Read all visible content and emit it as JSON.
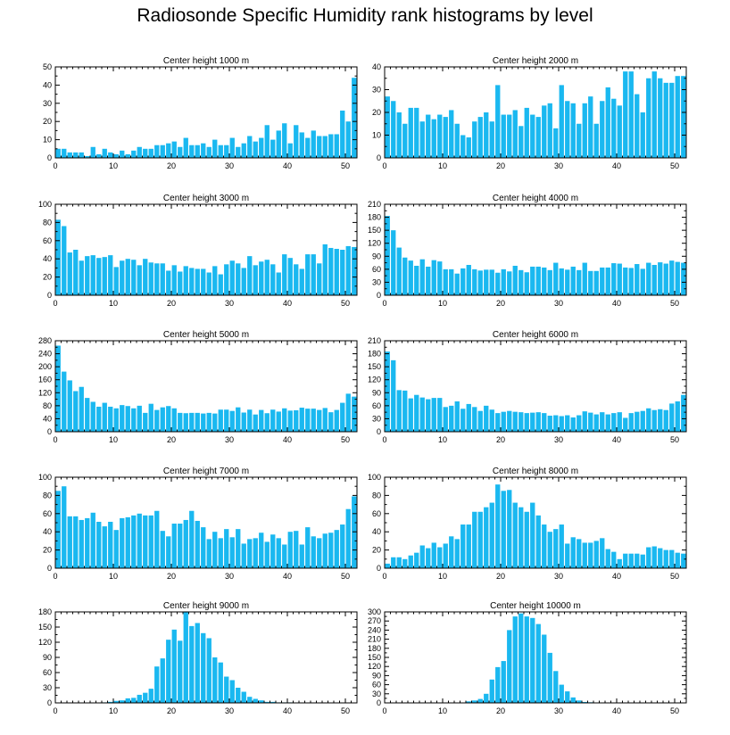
{
  "title": "Radiosonde Specific Humidity rank histograms by level",
  "colors": {
    "bar": "#1ab8f0",
    "axis": "#000000"
  },
  "chart_data": [
    {
      "type": "bar",
      "title": "Center height 1000 m",
      "xlim": [
        0,
        52
      ],
      "ylim": [
        0,
        50
      ],
      "xticks": [
        0,
        10,
        20,
        30,
        40,
        50
      ],
      "yticks": [
        0,
        10,
        20,
        30,
        40,
        50
      ],
      "x": [
        0,
        1,
        2,
        3,
        4,
        5,
        6,
        7,
        8,
        9,
        10,
        11,
        12,
        13,
        14,
        15,
        16,
        17,
        18,
        19,
        20,
        21,
        22,
        23,
        24,
        25,
        26,
        27,
        28,
        29,
        30,
        31,
        32,
        33,
        34,
        35,
        36,
        37,
        38,
        39,
        40,
        41,
        42,
        43,
        44,
        45,
        46,
        47,
        48,
        49,
        50,
        51
      ],
      "values": [
        5,
        5,
        3,
        3,
        3,
        1,
        6,
        2,
        5,
        3,
        2,
        4,
        2,
        4,
        6,
        5,
        5,
        7,
        7,
        8,
        9,
        6,
        11,
        7,
        7,
        8,
        6,
        10,
        7,
        7,
        11,
        6,
        8,
        12,
        9,
        11,
        18,
        10,
        15,
        19,
        8,
        18,
        14,
        11,
        15,
        12,
        12,
        13,
        13,
        26,
        20,
        44
      ]
    },
    {
      "type": "bar",
      "title": "Center height 2000 m",
      "xlim": [
        0,
        52
      ],
      "ylim": [
        0,
        40
      ],
      "xticks": [
        0,
        10,
        20,
        30,
        40,
        50
      ],
      "yticks": [
        0,
        10,
        20,
        30,
        40
      ],
      "x": [
        0,
        1,
        2,
        3,
        4,
        5,
        6,
        7,
        8,
        9,
        10,
        11,
        12,
        13,
        14,
        15,
        16,
        17,
        18,
        19,
        20,
        21,
        22,
        23,
        24,
        25,
        26,
        27,
        28,
        29,
        30,
        31,
        32,
        33,
        34,
        35,
        36,
        37,
        38,
        39,
        40,
        41,
        42,
        43,
        44,
        45,
        46,
        47,
        48,
        49,
        50,
        51
      ],
      "values": [
        27,
        25,
        20,
        15,
        22,
        22,
        16,
        19,
        17,
        19,
        18,
        21,
        15,
        10,
        9,
        16,
        18,
        20,
        16,
        32,
        19,
        19,
        21,
        14,
        22,
        19,
        18,
        23,
        24,
        13,
        32,
        25,
        24,
        15,
        24,
        27,
        15,
        25,
        31,
        26,
        23,
        38,
        38,
        28,
        20,
        35,
        38,
        35,
        33,
        33,
        36,
        36
      ]
    },
    {
      "type": "bar",
      "title": "Center height 3000 m",
      "xlim": [
        0,
        52
      ],
      "ylim": [
        0,
        100
      ],
      "xticks": [
        0,
        10,
        20,
        30,
        40,
        50
      ],
      "yticks": [
        0,
        20,
        40,
        60,
        80,
        100
      ],
      "x": [
        0,
        1,
        2,
        3,
        4,
        5,
        6,
        7,
        8,
        9,
        10,
        11,
        12,
        13,
        14,
        15,
        16,
        17,
        18,
        19,
        20,
        21,
        22,
        23,
        24,
        25,
        26,
        27,
        28,
        29,
        30,
        31,
        32,
        33,
        34,
        35,
        36,
        37,
        38,
        39,
        40,
        41,
        42,
        43,
        44,
        45,
        46,
        47,
        48,
        49,
        50,
        51
      ],
      "values": [
        83,
        76,
        47,
        50,
        38,
        43,
        44,
        41,
        42,
        44,
        31,
        38,
        40,
        39,
        33,
        40,
        36,
        35,
        35,
        27,
        33,
        26,
        32,
        30,
        29,
        29,
        25,
        32,
        23,
        34,
        38,
        35,
        30,
        43,
        33,
        37,
        39,
        34,
        25,
        45,
        41,
        34,
        29,
        45,
        45,
        35,
        56,
        52,
        51,
        50,
        54,
        53
      ]
    },
    {
      "type": "bar",
      "title": "Center height 4000 m",
      "xlim": [
        0,
        52
      ],
      "ylim": [
        0,
        210
      ],
      "xticks": [
        0,
        10,
        20,
        30,
        40,
        50
      ],
      "yticks": [
        0,
        30,
        60,
        90,
        120,
        150,
        180,
        210
      ],
      "x": [
        0,
        1,
        2,
        3,
        4,
        5,
        6,
        7,
        8,
        9,
        10,
        11,
        12,
        13,
        14,
        15,
        16,
        17,
        18,
        19,
        20,
        21,
        22,
        23,
        24,
        25,
        26,
        27,
        28,
        29,
        30,
        31,
        32,
        33,
        34,
        35,
        36,
        37,
        38,
        39,
        40,
        41,
        42,
        43,
        44,
        45,
        46,
        47,
        48,
        49,
        50,
        51
      ],
      "values": [
        183,
        150,
        110,
        87,
        80,
        68,
        83,
        66,
        81,
        78,
        60,
        60,
        50,
        62,
        70,
        60,
        57,
        59,
        59,
        52,
        60,
        55,
        68,
        58,
        53,
        66,
        66,
        64,
        58,
        75,
        62,
        59,
        66,
        58,
        75,
        56,
        56,
        64,
        64,
        74,
        73,
        64,
        63,
        72,
        61,
        75,
        70,
        76,
        73,
        80,
        77,
        75
      ]
    },
    {
      "type": "bar",
      "title": "Center height 5000 m",
      "xlim": [
        0,
        52
      ],
      "ylim": [
        0,
        280
      ],
      "xticks": [
        0,
        10,
        20,
        30,
        40,
        50
      ],
      "yticks": [
        0,
        40,
        80,
        120,
        160,
        200,
        240,
        280
      ],
      "x": [
        0,
        1,
        2,
        3,
        4,
        5,
        6,
        7,
        8,
        9,
        10,
        11,
        12,
        13,
        14,
        15,
        16,
        17,
        18,
        19,
        20,
        21,
        22,
        23,
        24,
        25,
        26,
        27,
        28,
        29,
        30,
        31,
        32,
        33,
        34,
        35,
        36,
        37,
        38,
        39,
        40,
        41,
        42,
        43,
        44,
        45,
        46,
        47,
        48,
        49,
        50,
        51
      ],
      "values": [
        265,
        185,
        158,
        125,
        138,
        104,
        92,
        77,
        89,
        77,
        72,
        82,
        79,
        72,
        80,
        58,
        86,
        67,
        75,
        79,
        72,
        58,
        57,
        58,
        58,
        56,
        58,
        56,
        68,
        68,
        64,
        75,
        59,
        68,
        53,
        67,
        57,
        68,
        62,
        72,
        65,
        66,
        74,
        71,
        71,
        67,
        73,
        60,
        67,
        89,
        117,
        108
      ]
    },
    {
      "type": "bar",
      "title": "Center height 6000 m",
      "xlim": [
        0,
        52
      ],
      "ylim": [
        0,
        210
      ],
      "xticks": [
        0,
        10,
        20,
        30,
        40,
        50
      ],
      "yticks": [
        0,
        30,
        60,
        90,
        120,
        150,
        180,
        210
      ],
      "x": [
        0,
        1,
        2,
        3,
        4,
        5,
        6,
        7,
        8,
        9,
        10,
        11,
        12,
        13,
        14,
        15,
        16,
        17,
        18,
        19,
        20,
        21,
        22,
        23,
        24,
        25,
        26,
        27,
        28,
        29,
        30,
        31,
        32,
        33,
        34,
        35,
        36,
        37,
        38,
        39,
        40,
        41,
        42,
        43,
        44,
        45,
        46,
        47,
        48,
        49,
        50,
        51
      ],
      "values": [
        185,
        165,
        96,
        95,
        77,
        85,
        79,
        75,
        78,
        78,
        57,
        60,
        70,
        53,
        64,
        57,
        48,
        60,
        51,
        43,
        46,
        48,
        46,
        45,
        43,
        44,
        45,
        43,
        37,
        38,
        36,
        38,
        33,
        38,
        47,
        44,
        40,
        45,
        40,
        43,
        45,
        32,
        43,
        46,
        48,
        54,
        50,
        52,
        50,
        65,
        70,
        85
      ]
    },
    {
      "type": "bar",
      "title": "Center height 7000 m",
      "xlim": [
        0,
        52
      ],
      "ylim": [
        0,
        100
      ],
      "xticks": [
        0,
        10,
        20,
        30,
        40,
        50
      ],
      "yticks": [
        0,
        20,
        40,
        60,
        80,
        100
      ],
      "x": [
        0,
        1,
        2,
        3,
        4,
        5,
        6,
        7,
        8,
        9,
        10,
        11,
        12,
        13,
        14,
        15,
        16,
        17,
        18,
        19,
        20,
        21,
        22,
        23,
        24,
        25,
        26,
        27,
        28,
        29,
        30,
        31,
        32,
        33,
        34,
        35,
        36,
        37,
        38,
        39,
        40,
        41,
        42,
        43,
        44,
        45,
        46,
        47,
        48,
        49,
        50,
        51
      ],
      "values": [
        85,
        90,
        57,
        57,
        53,
        55,
        61,
        51,
        46,
        51,
        42,
        55,
        56,
        58,
        60,
        58,
        58,
        63,
        41,
        35,
        49,
        49,
        53,
        63,
        52,
        45,
        32,
        40,
        33,
        43,
        34,
        43,
        27,
        32,
        33,
        39,
        29,
        37,
        33,
        26,
        40,
        41,
        26,
        45,
        35,
        33,
        38,
        39,
        42,
        48,
        65,
        79
      ]
    },
    {
      "type": "bar",
      "title": "Center height 8000 m",
      "xlim": [
        0,
        52
      ],
      "ylim": [
        0,
        100
      ],
      "xticks": [
        0,
        10,
        20,
        30,
        40,
        50
      ],
      "yticks": [
        0,
        20,
        40,
        60,
        80,
        100
      ],
      "x": [
        0,
        1,
        2,
        3,
        4,
        5,
        6,
        7,
        8,
        9,
        10,
        11,
        12,
        13,
        14,
        15,
        16,
        17,
        18,
        19,
        20,
        21,
        22,
        23,
        24,
        25,
        26,
        27,
        28,
        29,
        30,
        31,
        32,
        33,
        34,
        35,
        36,
        37,
        38,
        39,
        40,
        41,
        42,
        43,
        44,
        45,
        46,
        47,
        48,
        49,
        50,
        51
      ],
      "values": [
        5,
        12,
        12,
        10,
        14,
        17,
        25,
        22,
        28,
        23,
        27,
        35,
        32,
        48,
        48,
        62,
        62,
        67,
        72,
        92,
        85,
        86,
        72,
        67,
        62,
        72,
        58,
        48,
        40,
        43,
        48,
        27,
        34,
        32,
        28,
        28,
        30,
        33,
        21,
        18,
        10,
        16,
        16,
        16,
        15,
        23,
        24,
        22,
        20,
        20,
        17,
        16
      ]
    },
    {
      "type": "bar",
      "title": "Center height 9000 m",
      "xlim": [
        0,
        52
      ],
      "ylim": [
        0,
        180
      ],
      "xticks": [
        0,
        10,
        20,
        30,
        40,
        50
      ],
      "yticks": [
        0,
        30,
        60,
        90,
        120,
        150,
        180
      ],
      "x": [
        0,
        1,
        2,
        3,
        4,
        5,
        6,
        7,
        8,
        9,
        10,
        11,
        12,
        13,
        14,
        15,
        16,
        17,
        18,
        19,
        20,
        21,
        22,
        23,
        24,
        25,
        26,
        27,
        28,
        29,
        30,
        31,
        32,
        33,
        34,
        35,
        36,
        37,
        38,
        39,
        40,
        41,
        42,
        43,
        44,
        45,
        46,
        47,
        48,
        49,
        50,
        51
      ],
      "values": [
        0,
        0,
        0,
        0,
        0,
        0,
        0,
        0,
        1,
        2,
        4,
        5,
        9,
        10,
        16,
        20,
        28,
        72,
        88,
        125,
        145,
        123,
        181,
        152,
        158,
        138,
        128,
        90,
        80,
        52,
        45,
        30,
        22,
        12,
        8,
        5,
        2,
        2,
        1,
        1,
        1,
        0,
        0,
        0,
        0,
        0,
        0,
        0,
        0,
        0,
        0,
        0
      ]
    },
    {
      "type": "bar",
      "title": "Center height 10000 m",
      "xlim": [
        0,
        52
      ],
      "ylim": [
        0,
        300
      ],
      "xticks": [
        0,
        10,
        20,
        30,
        40,
        50
      ],
      "yticks": [
        0,
        30,
        60,
        90,
        120,
        150,
        180,
        210,
        240,
        270,
        300
      ],
      "x": [
        0,
        1,
        2,
        3,
        4,
        5,
        6,
        7,
        8,
        9,
        10,
        11,
        12,
        13,
        14,
        15,
        16,
        17,
        18,
        19,
        20,
        21,
        22,
        23,
        24,
        25,
        26,
        27,
        28,
        29,
        30,
        31,
        32,
        33,
        34,
        35,
        36,
        37,
        38,
        39,
        40,
        41,
        42,
        43,
        44,
        45,
        46,
        47,
        48,
        49,
        50,
        51
      ],
      "values": [
        0,
        0,
        0,
        0,
        0,
        0,
        0,
        0,
        0,
        0,
        0,
        0,
        0,
        0,
        5,
        8,
        13,
        30,
        77,
        118,
        138,
        240,
        285,
        295,
        285,
        280,
        260,
        225,
        165,
        105,
        60,
        38,
        18,
        8,
        3,
        2,
        1,
        0,
        0,
        0,
        0,
        0,
        0,
        0,
        0,
        0,
        1,
        0,
        0,
        0,
        0,
        0
      ]
    }
  ]
}
